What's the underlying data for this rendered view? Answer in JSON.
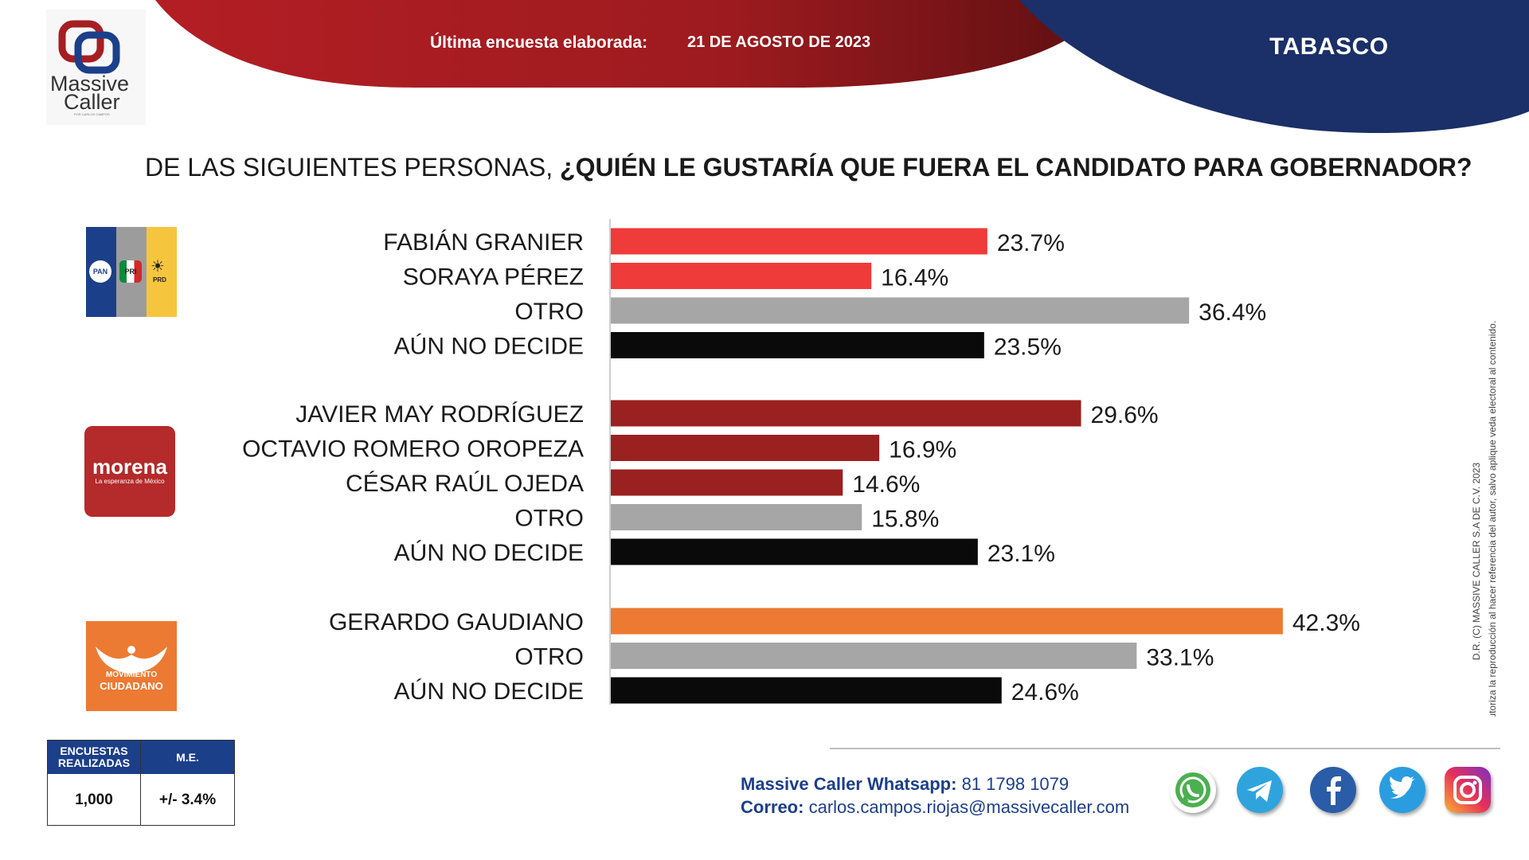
{
  "header": {
    "survey_label": "Última encuesta elaborada:",
    "survey_date": "21 DE AGOSTO DE 2023",
    "region": "TABASCO"
  },
  "brand": {
    "name_line1": "Massive",
    "name_line2": "Caller",
    "tagline": "POR CARLOS CAMPOS"
  },
  "question": {
    "prefix": "DE LAS SIGUIENTES PERSONAS, ",
    "emphasis": "¿QUIÉN LE GUSTARÍA QUE FUERA EL CANDIDATO PARA GOBERNADOR?"
  },
  "party_logos": {
    "coalition": {
      "pan": "PAN",
      "pri": "PRI",
      "prd": "PRD"
    },
    "morena": {
      "name": "morena",
      "tagline": "La esperanza de México"
    },
    "mc": {
      "line1": "MOVIMIENTO",
      "line2": "CIUDADANO"
    }
  },
  "colors": {
    "pan_pri_prd": "#ef3b39",
    "morena": "#9b2020",
    "mc": "#ec7a33",
    "otro": "#a6a6a6",
    "undecided": "#0a0a0a",
    "navy": "#1c3f8a"
  },
  "chart_data": {
    "type": "bar",
    "orientation": "horizontal",
    "value_suffix": "%",
    "groups": [
      {
        "party": "PAN-PRI-PRD",
        "bars": [
          {
            "label": "FABIÁN GRANIER",
            "value": 23.7,
            "value_label": "23.7%",
            "color": "#ef3b39"
          },
          {
            "label": "SORAYA PÉREZ",
            "value": 16.4,
            "value_label": "16.4%",
            "color": "#ef3b39"
          },
          {
            "label": "OTRO",
            "value": 36.4,
            "value_label": "36.4%",
            "color": "#a6a6a6"
          },
          {
            "label": "AÚN NO DECIDE",
            "value": 23.5,
            "value_label": "23.5%",
            "color": "#0a0a0a"
          }
        ]
      },
      {
        "party": "MORENA",
        "bars": [
          {
            "label": "JAVIER MAY RODRÍGUEZ",
            "value": 29.6,
            "value_label": "29.6%",
            "color": "#9b2020"
          },
          {
            "label": "OCTAVIO ROMERO OROPEZA",
            "value": 16.9,
            "value_label": "16.9%",
            "color": "#9b2020"
          },
          {
            "label": "CÉSAR RAÚL OJEDA",
            "value": 14.6,
            "value_label": "14.6%",
            "color": "#9b2020"
          },
          {
            "label": "OTRO",
            "value": 15.8,
            "value_label": "15.8%",
            "color": "#a6a6a6"
          },
          {
            "label": "AÚN NO DECIDE",
            "value": 23.1,
            "value_label": "23.1%",
            "color": "#0a0a0a"
          }
        ]
      },
      {
        "party": "MOVIMIENTO CIUDADANO",
        "bars": [
          {
            "label": "GERARDO GAUDIANO",
            "value": 42.3,
            "value_label": "42.3%",
            "color": "#ec7a33"
          },
          {
            "label": "OTRO",
            "value": 33.1,
            "value_label": "33.1%",
            "color": "#a6a6a6"
          },
          {
            "label": "AÚN NO DECIDE",
            "value": 24.6,
            "value_label": "24.6%",
            "color": "#0a0a0a"
          }
        ]
      }
    ]
  },
  "stats": {
    "surveys_label": "ENCUESTAS REALIZADAS",
    "surveys_value": "1,000",
    "me_label": "M.E.",
    "me_value": "+/- 3.4%"
  },
  "contact": {
    "whatsapp_label": "Massive Caller Whatsapp:",
    "whatsapp_number": "81 1798 1079",
    "email_label": "Correo:",
    "email": "carlos.campos.riojas@massivecaller.com"
  },
  "disclaimer": {
    "line1": "D.R. (C) MASSIVE CALLER S.A DE C.V. 2023",
    "line2": "Se autoriza la reproducción al hacer referencia del autor, salvo aplique veda electoral al contenido."
  },
  "social_icons": [
    "whatsapp-icon",
    "telegram-icon",
    "facebook-icon",
    "twitter-icon",
    "instagram-icon"
  ]
}
